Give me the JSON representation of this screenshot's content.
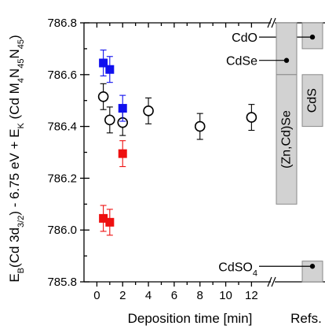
{
  "chart_data": {
    "type": "scatter",
    "xlabel": "Deposition time  [min]",
    "ylabel": "E_B(Cd 3d_3/2) - 6.75 eV + E_K (Cd M_4N_45N_45)",
    "ylabel_parts": {
      "t1": "E",
      "t1sub": "B",
      "t2": "(Cd 3d",
      "t2sub": "3/2",
      "t3": ") - 6.75 eV + E",
      "t3sub": "K",
      "t4": " (Cd M",
      "t4sub": "4",
      "t5": "N",
      "t5sub": "45",
      "t6": "N",
      "t6sub": "45",
      "t7": ")"
    },
    "refs_label": "Refs.",
    "xlim": [
      -1,
      13.5
    ],
    "ylim": [
      785.8,
      786.8
    ],
    "x_ticks": [
      0,
      2,
      4,
      6,
      8,
      10,
      12
    ],
    "y_ticks": [
      785.8,
      786.0,
      786.2,
      786.4,
      786.6,
      786.8
    ],
    "series": [
      {
        "marker": "circle-open",
        "color": "#000000",
        "points": [
          {
            "x": 0.5,
            "y": 786.515,
            "err": 0.05
          },
          {
            "x": 1.0,
            "y": 786.425,
            "err": 0.05
          },
          {
            "x": 2.0,
            "y": 786.415,
            "err": 0.05
          },
          {
            "x": 4.0,
            "y": 786.46,
            "err": 0.05
          },
          {
            "x": 8.0,
            "y": 786.4,
            "err": 0.05
          },
          {
            "x": 12.0,
            "y": 786.435,
            "err": 0.05
          }
        ]
      },
      {
        "marker": "square-filled",
        "color": "#1010ee",
        "points": [
          {
            "x": 0.5,
            "y": 786.645,
            "err": 0.05
          },
          {
            "x": 1.0,
            "y": 786.62,
            "err": 0.05
          },
          {
            "x": 2.0,
            "y": 786.47,
            "err": 0.05
          }
        ]
      },
      {
        "marker": "square-filled",
        "color": "#ee1010",
        "points": [
          {
            "x": 0.5,
            "y": 786.045,
            "err": 0.05
          },
          {
            "x": 1.0,
            "y": 786.03,
            "err": 0.05
          },
          {
            "x": 2.0,
            "y": 786.295,
            "err": 0.05
          }
        ]
      }
    ],
    "references": [
      {
        "label": "CdO",
        "column": 1,
        "ymin": 786.7,
        "ymax": 786.8,
        "marker_y": 786.745
      },
      {
        "label": "CdSe",
        "column": 0,
        "ymin": 786.6,
        "ymax": 786.8,
        "marker_y": 786.655
      },
      {
        "label": "(Zn,Cd)Se",
        "column": 0,
        "ymin": 786.1,
        "ymax": 786.6,
        "vertical": true
      },
      {
        "label": "CdS",
        "column": 1,
        "ymin": 786.4,
        "ymax": 786.6,
        "vertical": true
      },
      {
        "label": "CdSO",
        "label_sub": "4",
        "column": 1,
        "ymin": 785.8,
        "ymax": 785.88,
        "marker_y": 785.86
      }
    ],
    "colors": {
      "ref_fill": "#d2d2d2",
      "ref_stroke": "#8a8a8a",
      "blue": "#1010ee",
      "red": "#ee1010"
    }
  }
}
